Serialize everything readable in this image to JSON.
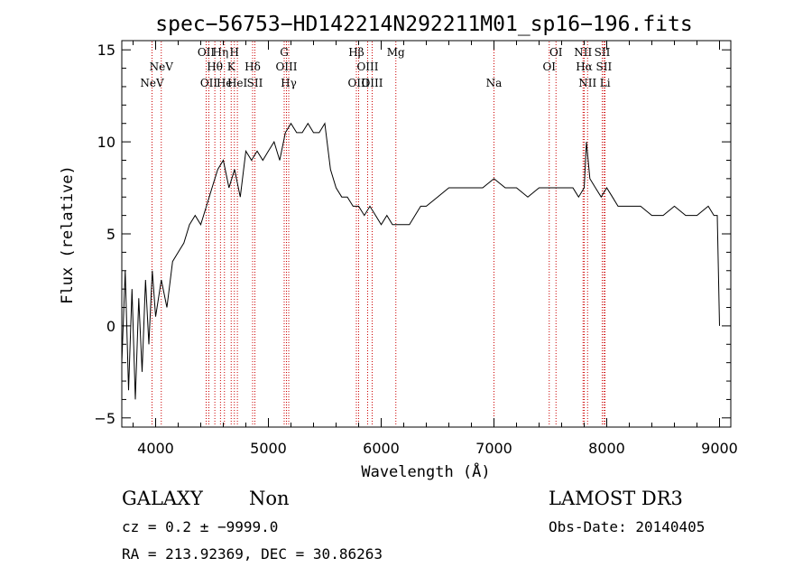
{
  "chart_data": {
    "type": "line",
    "title": "spec−56753−HD142214N292211M01_sp16−196.fits",
    "xlabel": "Wavelength (Å)",
    "ylabel": "Flux (relative)",
    "xlim": [
      3700,
      9100
    ],
    "ylim": [
      -5.5,
      15.5
    ],
    "xticks": [
      4000,
      5000,
      6000,
      7000,
      8000,
      9000
    ],
    "yticks": [
      -5,
      0,
      5,
      10,
      15
    ],
    "grid": false,
    "series": [
      {
        "name": "spectrum",
        "x": [
          3700,
          3730,
          3760,
          3790,
          3820,
          3850,
          3880,
          3910,
          3940,
          3970,
          4000,
          4050,
          4100,
          4150,
          4200,
          4250,
          4300,
          4350,
          4400,
          4450,
          4500,
          4550,
          4600,
          4650,
          4700,
          4750,
          4800,
          4850,
          4900,
          4950,
          5000,
          5050,
          5100,
          5150,
          5200,
          5250,
          5300,
          5350,
          5400,
          5450,
          5500,
          5550,
          5600,
          5650,
          5700,
          5750,
          5800,
          5850,
          5900,
          5950,
          6000,
          6050,
          6100,
          6150,
          6200,
          6250,
          6300,
          6350,
          6400,
          6500,
          6600,
          6700,
          6800,
          6900,
          7000,
          7100,
          7200,
          7300,
          7400,
          7500,
          7600,
          7700,
          7750,
          7800,
          7820,
          7850,
          7900,
          7950,
          8000,
          8050,
          8100,
          8200,
          8300,
          8400,
          8500,
          8600,
          8700,
          8800,
          8900,
          8950,
          8980,
          9000
        ],
        "y": [
          -2,
          3,
          -3.5,
          2,
          -4,
          1.5,
          -2.5,
          2.5,
          -1,
          3,
          0.5,
          2.5,
          1,
          3.5,
          4,
          4.5,
          5.5,
          6,
          5.5,
          6.5,
          7.5,
          8.5,
          9,
          7.5,
          8.5,
          7,
          9.5,
          9,
          9.5,
          9,
          9.5,
          10,
          9,
          10.5,
          11,
          10.5,
          10.5,
          11,
          10.5,
          10.5,
          11,
          8.5,
          7.5,
          7,
          7,
          6.5,
          6.5,
          6,
          6.5,
          6,
          5.5,
          6,
          5.5,
          5.5,
          5.5,
          5.5,
          6,
          6.5,
          6.5,
          7,
          7.5,
          7.5,
          7.5,
          7.5,
          8,
          7.5,
          7.5,
          7,
          7.5,
          7.5,
          7.5,
          7.5,
          7,
          7.5,
          10,
          8,
          7.5,
          7,
          7.5,
          7,
          6.5,
          6.5,
          6.5,
          6,
          6,
          6.5,
          6,
          6,
          6.5,
          6,
          6,
          0
        ],
        "color": "#000000"
      }
    ],
    "line_markers": [
      {
        "x": 3968,
        "label": "NeV",
        "row": 3
      },
      {
        "x": 4050,
        "label": "NeV",
        "row": 2
      },
      {
        "x": 4448,
        "label": "OII",
        "row": 1
      },
      {
        "x": 4472,
        "label": "OII",
        "row": 3
      },
      {
        "x": 4525,
        "label": "Hθ",
        "row": 2
      },
      {
        "x": 4575,
        "label": "Hη",
        "row": 1
      },
      {
        "x": 4610,
        "label": "He",
        "row": 3
      },
      {
        "x": 4670,
        "label": "K",
        "row": 2
      },
      {
        "x": 4698,
        "label": "H",
        "row": 1
      },
      {
        "x": 4725,
        "label": "HeI",
        "row": 3
      },
      {
        "x": 4860,
        "label": "Hδ",
        "row": 2
      },
      {
        "x": 4880,
        "label": "SII",
        "row": 3
      },
      {
        "x": 5140,
        "label": "G",
        "row": 1
      },
      {
        "x": 5160,
        "label": "OIII",
        "row": 2
      },
      {
        "x": 5180,
        "label": "Hγ",
        "row": 3
      },
      {
        "x": 5780,
        "label": "Hβ",
        "row": 1
      },
      {
        "x": 5800,
        "label": "OIII",
        "row": 3
      },
      {
        "x": 5880,
        "label": "OIII",
        "row": 2
      },
      {
        "x": 5920,
        "label": "OIII",
        "row": 3
      },
      {
        "x": 6130,
        "label": "Mg",
        "row": 1
      },
      {
        "x": 7000,
        "label": "Na",
        "row": 3
      },
      {
        "x": 7490,
        "label": "OI",
        "row": 2
      },
      {
        "x": 7550,
        "label": "OI",
        "row": 1
      },
      {
        "x": 7790,
        "label": "NII",
        "row": 1
      },
      {
        "x": 7800,
        "label": "Hα",
        "row": 2
      },
      {
        "x": 7830,
        "label": "NII",
        "row": 3
      },
      {
        "x": 7960,
        "label": "SII",
        "row": 1
      },
      {
        "x": 7975,
        "label": "SII",
        "row": 2
      },
      {
        "x": 7985,
        "label": "Li",
        "row": 3
      }
    ],
    "marker_color": "#cc0000"
  },
  "info": {
    "object_type": "GALAXY",
    "subclass": "Non",
    "cz": "cz = 0.2 ± −9999.0",
    "coords": "RA = 213.92369, DEC =  30.86263",
    "survey": "LAMOST DR3",
    "obs_date": "Obs-Date: 20140405"
  }
}
